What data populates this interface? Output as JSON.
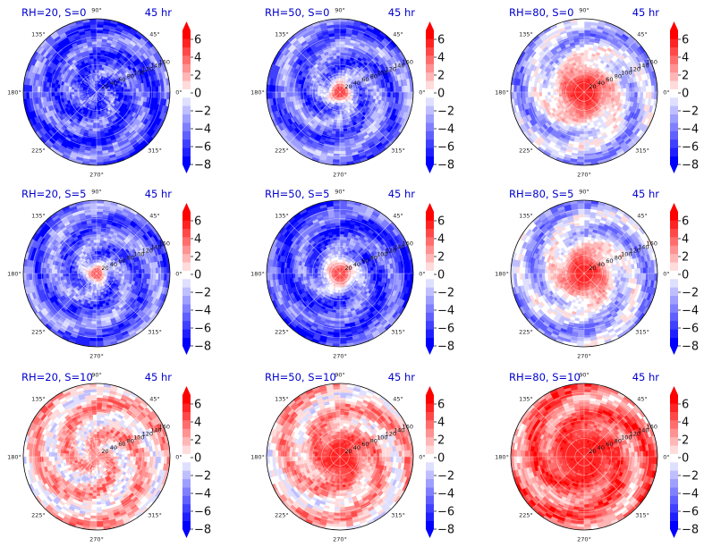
{
  "chart_data": {
    "type": "heatmap",
    "subtype": "polar filled contour panels with colorbars, arranged in a 3x3 grid",
    "title_color": "#0000cc",
    "colormap": "bwr",
    "contour_levels": [
      -8,
      -7,
      -6,
      -5,
      -4,
      -3,
      -2,
      -1,
      0,
      1,
      2,
      3,
      4,
      5,
      6,
      7
    ],
    "colorbar": {
      "ticks": [
        "6",
        "4",
        "2",
        "0",
        "−2",
        "−4",
        "−6",
        "−8"
      ],
      "range": [
        -8,
        7
      ],
      "extend": "both"
    },
    "angular_ticks": [
      "90°",
      "45°",
      "0°",
      "315°",
      "270°",
      "225°",
      "180°",
      "135°"
    ],
    "radial_ticks": [
      "20",
      "40",
      "60",
      "80",
      "100",
      "120",
      "140",
      "160"
    ],
    "panels": [
      {
        "title_left": "RH=20, S=0",
        "title_right": "45 hr",
        "core_value": -3,
        "core_radius_frac": 0.0,
        "ambient_value": -5
      },
      {
        "title_left": "RH=50, S=0",
        "title_right": "45 hr",
        "core_value": 7,
        "core_radius_frac": 0.2,
        "ambient_value": -4
      },
      {
        "title_left": "RH=80, S=0",
        "title_right": "45 hr",
        "core_value": 7,
        "core_radius_frac": 0.55,
        "ambient_value": -2
      },
      {
        "title_left": "RH=20, S=5",
        "title_right": "45 hr",
        "core_value": 6,
        "core_radius_frac": 0.18,
        "ambient_value": -4
      },
      {
        "title_left": "RH=50, S=5",
        "title_right": "45 hr",
        "core_value": 6,
        "core_radius_frac": 0.3,
        "ambient_value": -5
      },
      {
        "title_left": "RH=80, S=5",
        "title_right": "45 hr",
        "core_value": 7,
        "core_radius_frac": 0.5,
        "ambient_value": -2
      },
      {
        "title_left": "RH=20, S=10",
        "title_right": "45 hr",
        "core_value": 4,
        "core_radius_frac": 0.15,
        "ambient_value": 2
      },
      {
        "title_left": "RH=50, S=10",
        "title_right": "45 hr",
        "core_value": 7,
        "core_radius_frac": 0.45,
        "ambient_value": 2
      },
      {
        "title_left": "RH=80, S=10",
        "title_right": "45 hr",
        "core_value": 7,
        "core_radius_frac": 0.6,
        "ambient_value": 4
      }
    ]
  }
}
